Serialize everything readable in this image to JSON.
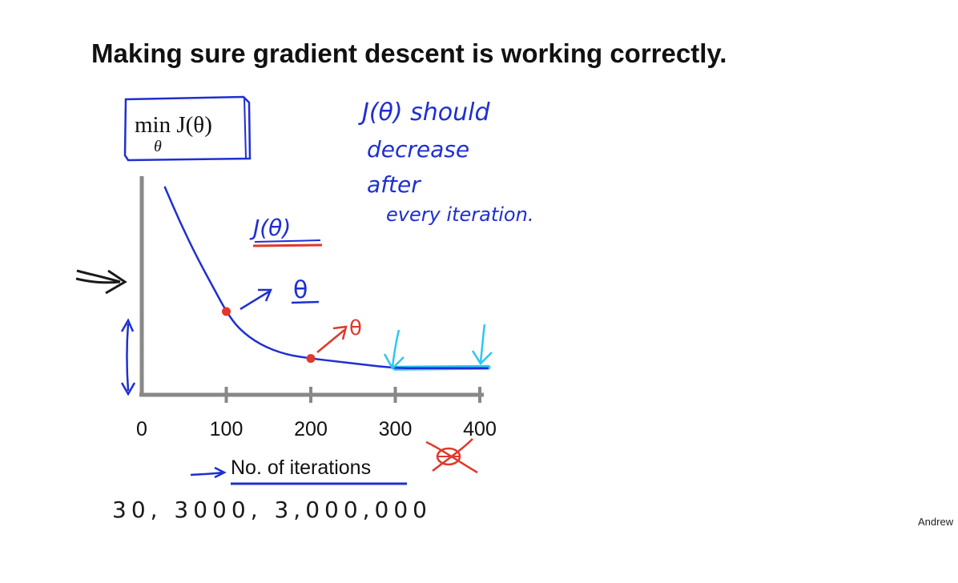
{
  "slide": {
    "title": "Making sure gradient descent is working correctly.",
    "objective": {
      "main": "min J(θ)",
      "subscript": "θ"
    },
    "footer": "Andrew"
  },
  "annotations": {
    "note_lines": [
      "J(θ) should",
      "decrease",
      "after",
      "every iteration."
    ],
    "curve_label": "J(θ)",
    "theta_label_1": "θ",
    "theta_label_2": "θ",
    "iteration_examples": "30, 3000, 3,000,000"
  },
  "colors": {
    "curve": "#1f2fd1",
    "ink_blue": "#1f2fd1",
    "ink_red": "#e0382a",
    "ink_cyan": "#2ec6f0",
    "axis": "#888888"
  },
  "chart_data": {
    "type": "line",
    "title": "",
    "xlabel": "No. of iterations",
    "ylabel": "",
    "x_ticks": [
      0,
      100,
      200,
      300,
      400
    ],
    "xlim": [
      0,
      410
    ],
    "grid": false,
    "series": [
      {
        "x": [
          27,
          45,
          65,
          85,
          100,
          115,
          140,
          170,
          200,
          230,
          260,
          300,
          340,
          380,
          410
        ],
        "y": [
          0.98,
          0.8,
          0.62,
          0.46,
          0.34,
          0.25,
          0.17,
          0.12,
          0.1,
          0.085,
          0.07,
          0.05,
          0.05,
          0.05,
          0.05
        ]
      }
    ],
    "highlighted_points": [
      {
        "x": 100,
        "y": 0.34
      },
      {
        "x": 200,
        "y": 0.1
      }
    ],
    "flat_segment": {
      "x_start": 300,
      "x_end": 410
    }
  }
}
